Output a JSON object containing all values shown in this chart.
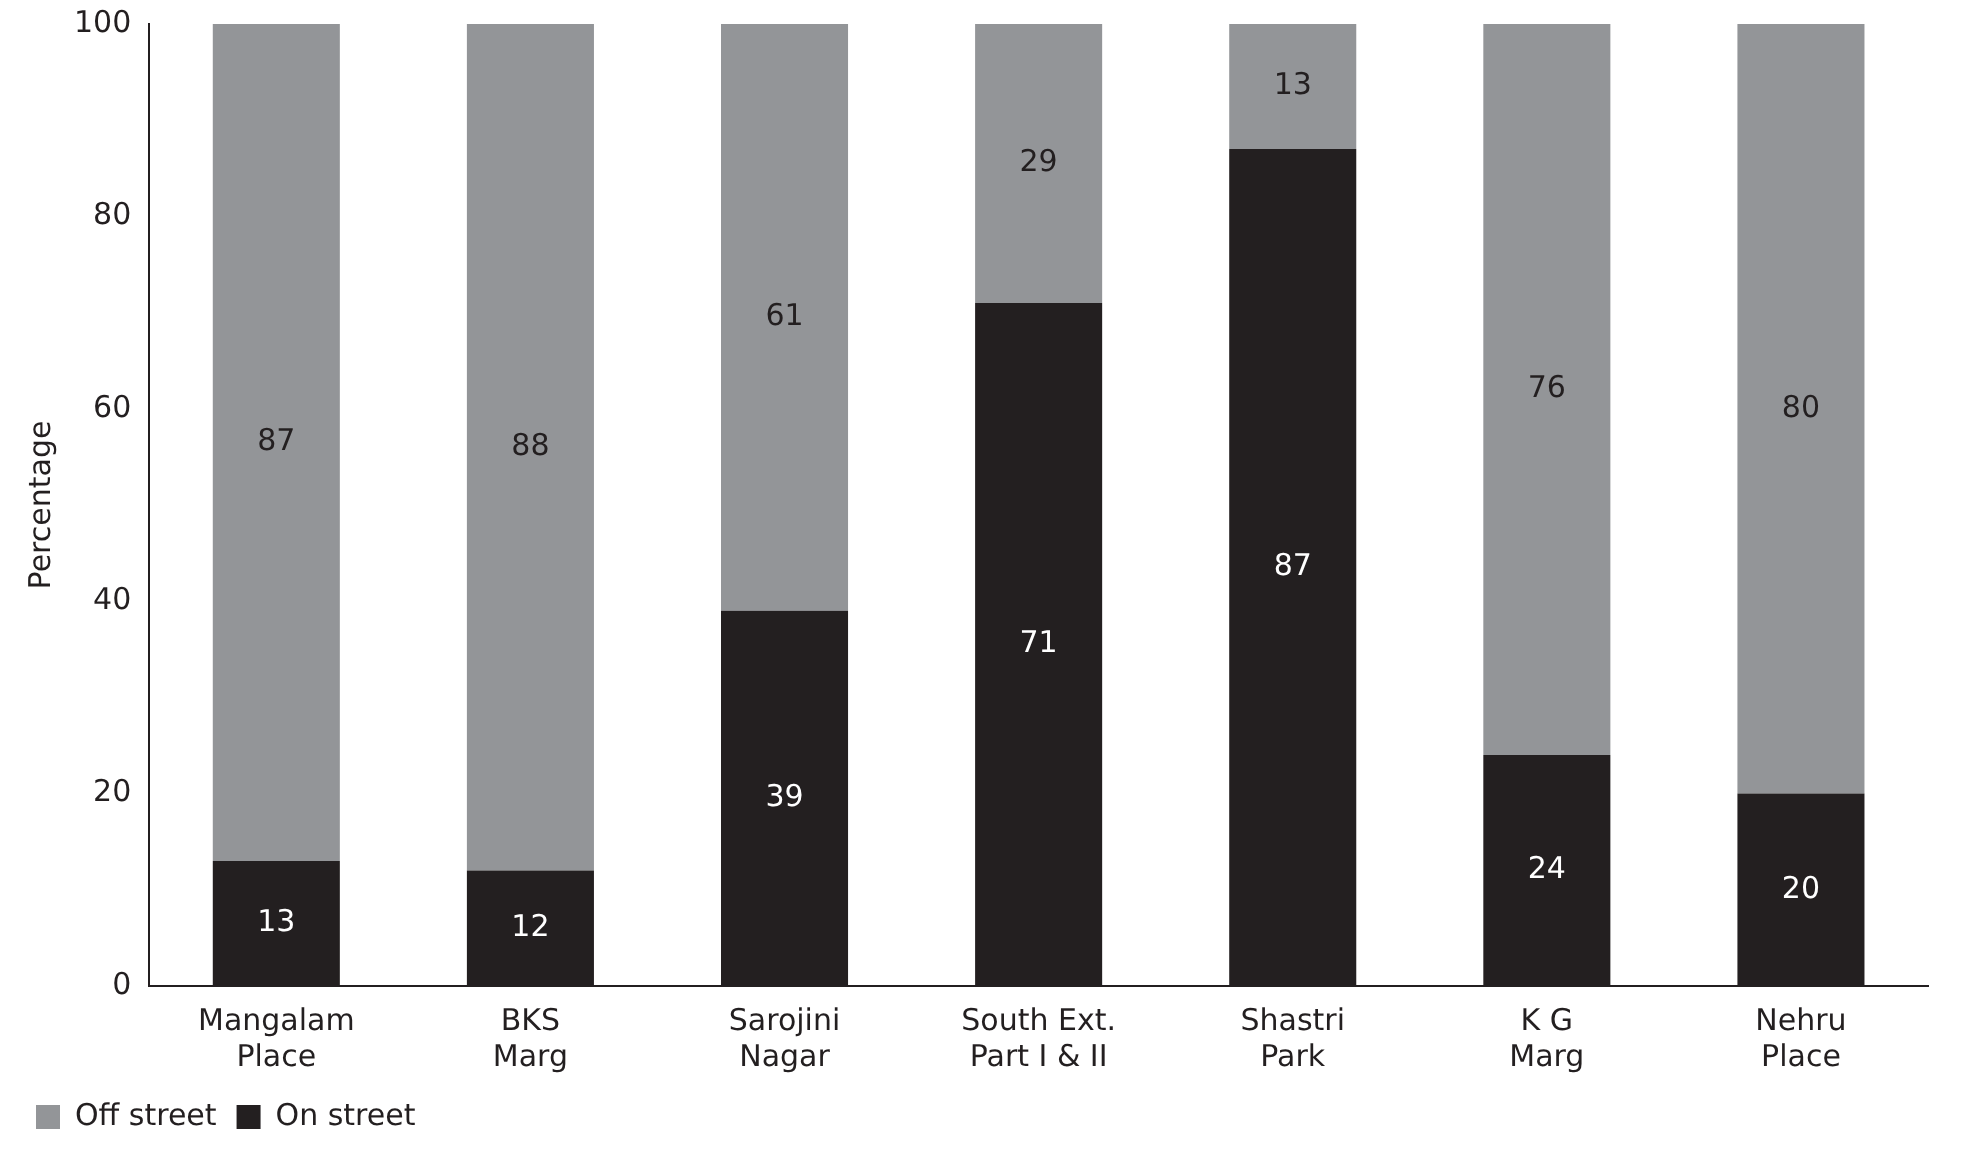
{
  "chart_data": {
    "type": "bar",
    "stacked": true,
    "ylabel": "Percentage",
    "categories": [
      "Mangalam\nPlace",
      "BKS\nMarg",
      "Sarojini\nNagar",
      "South Ext.\nPart I & II",
      "Shastri\nPark",
      "K G\nMarg",
      "Nehru\nPlace"
    ],
    "series": [
      {
        "name": "On street",
        "color": "#231f20",
        "values": [
          13,
          12,
          39,
          71,
          87,
          24,
          20
        ]
      },
      {
        "name": "Off street",
        "color": "#939598",
        "values": [
          87,
          88,
          61,
          29,
          13,
          76,
          80
        ]
      }
    ],
    "ylim": [
      0,
      100
    ],
    "yticks": [
      0,
      20,
      40,
      60,
      80,
      100
    ],
    "grid": false,
    "legend": "bottom",
    "data_labels": true
  }
}
